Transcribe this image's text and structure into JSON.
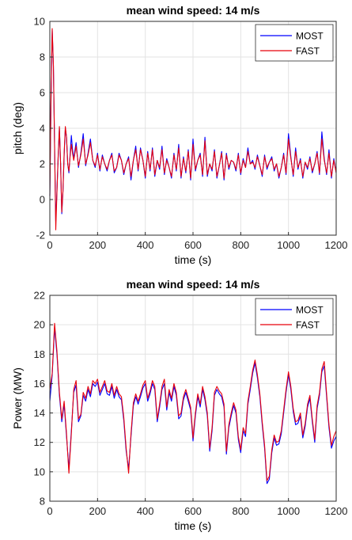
{
  "chart_data": [
    {
      "type": "line",
      "title": "mean wind speed: 14 m/s",
      "xlabel": "time (s)",
      "ylabel": "pitch (deg)",
      "xlim": [
        0,
        1200
      ],
      "ylim": [
        -2,
        10
      ],
      "xticks": [
        0,
        200,
        400,
        600,
        800,
        1000,
        1200
      ],
      "yticks": [
        -2,
        0,
        2,
        4,
        6,
        8,
        10
      ],
      "grid": true,
      "legend_position": "top-right",
      "series": [
        {
          "name": "MOST",
          "color": "#0000ff",
          "x": [
            0,
            5,
            10,
            15,
            20,
            25,
            30,
            35,
            40,
            45,
            50,
            55,
            60,
            65,
            70,
            75,
            80,
            85,
            90,
            95,
            100,
            110,
            120,
            130,
            140,
            150,
            160,
            170,
            180,
            190,
            200,
            210,
            220,
            230,
            240,
            250,
            260,
            270,
            280,
            290,
            300,
            310,
            320,
            330,
            340,
            350,
            360,
            370,
            380,
            390,
            400,
            410,
            420,
            430,
            440,
            450,
            460,
            470,
            480,
            490,
            500,
            510,
            520,
            530,
            540,
            550,
            560,
            570,
            580,
            590,
            600,
            610,
            620,
            630,
            640,
            650,
            660,
            670,
            680,
            690,
            700,
            710,
            720,
            730,
            740,
            750,
            760,
            770,
            780,
            790,
            800,
            810,
            820,
            830,
            840,
            850,
            860,
            870,
            880,
            890,
            900,
            910,
            920,
            930,
            940,
            950,
            960,
            970,
            980,
            990,
            1000,
            1010,
            1020,
            1030,
            1040,
            1050,
            1060,
            1070,
            1080,
            1090,
            1100,
            1110,
            1120,
            1130,
            1140,
            1150,
            1160,
            1170,
            1180,
            1190,
            1200
          ],
          "y": [
            0.2,
            5.5,
            9.5,
            7.5,
            3.0,
            -1.2,
            0.5,
            2.5,
            4.0,
            2.0,
            -0.8,
            0.5,
            2.5,
            4.0,
            3.5,
            2.0,
            1.5,
            2.5,
            3.6,
            2.8,
            2.3,
            3.2,
            1.8,
            2.6,
            3.7,
            1.9,
            2.6,
            3.4,
            2.2,
            1.8,
            2.6,
            1.6,
            2.5,
            2.0,
            1.6,
            2.2,
            2.6,
            1.5,
            1.8,
            2.6,
            2.2,
            1.4,
            2.0,
            2.4,
            1.1,
            2.2,
            3.0,
            1.6,
            2.9,
            2.2,
            1.2,
            2.7,
            1.6,
            2.9,
            1.3,
            2.2,
            1.7,
            3.0,
            1.4,
            2.3,
            1.8,
            1.2,
            2.6,
            1.6,
            3.1,
            1.2,
            2.4,
            1.5,
            2.8,
            1.1,
            3.4,
            1.6,
            2.2,
            2.6,
            1.3,
            3.5,
            1.3,
            2.0,
            1.6,
            2.8,
            1.2,
            1.9,
            2.7,
            1.1,
            2.6,
            1.7,
            2.2,
            2.1,
            1.6,
            2.6,
            1.4,
            2.3,
            1.8,
            2.9,
            2.0,
            2.2,
            1.7,
            2.5,
            1.9,
            1.3,
            2.5,
            1.7,
            2.1,
            2.4,
            1.6,
            2.0,
            1.2,
            1.8,
            2.6,
            1.4,
            3.7,
            2.4,
            1.3,
            2.9,
            1.7,
            2.3,
            1.2,
            2.1,
            1.7,
            2.4,
            1.5,
            2.0,
            2.7,
            1.4,
            3.8,
            2.3,
            1.4,
            2.8,
            1.2,
            2.3,
            1.5
          ],
          "note": ""
        },
        {
          "name": "FAST",
          "color": "#e8000b",
          "x": [
            0,
            5,
            10,
            15,
            20,
            25,
            30,
            35,
            40,
            45,
            50,
            55,
            60,
            65,
            70,
            75,
            80,
            85,
            90,
            95,
            100,
            110,
            120,
            130,
            140,
            150,
            160,
            170,
            180,
            190,
            200,
            210,
            220,
            230,
            240,
            250,
            260,
            270,
            280,
            290,
            300,
            310,
            320,
            330,
            340,
            350,
            360,
            370,
            380,
            390,
            400,
            410,
            420,
            430,
            440,
            450,
            460,
            470,
            480,
            490,
            500,
            510,
            520,
            530,
            540,
            550,
            560,
            570,
            580,
            590,
            600,
            610,
            620,
            630,
            640,
            650,
            660,
            670,
            680,
            690,
            700,
            710,
            720,
            730,
            740,
            750,
            760,
            770,
            780,
            790,
            800,
            810,
            820,
            830,
            840,
            850,
            860,
            870,
            880,
            890,
            900,
            910,
            920,
            930,
            940,
            950,
            960,
            970,
            980,
            990,
            1000,
            1010,
            1020,
            1030,
            1040,
            1050,
            1060,
            1070,
            1080,
            1090,
            1100,
            1110,
            1120,
            1130,
            1140,
            1150,
            1160,
            1170,
            1180,
            1190,
            1200
          ],
          "y": [
            0.2,
            5.8,
            9.6,
            7.6,
            3.0,
            -1.7,
            0.4,
            2.5,
            4.1,
            2.0,
            -0.7,
            0.5,
            2.6,
            4.1,
            3.5,
            2.0,
            1.6,
            2.4,
            3.1,
            2.6,
            2.2,
            3.0,
            1.9,
            2.5,
            3.4,
            2.0,
            2.5,
            3.2,
            2.2,
            1.9,
            2.5,
            1.7,
            2.4,
            2.0,
            1.7,
            2.2,
            2.5,
            1.6,
            1.8,
            2.5,
            2.2,
            1.5,
            2.0,
            2.3,
            1.3,
            2.2,
            2.8,
            1.7,
            2.8,
            2.2,
            1.3,
            2.6,
            1.7,
            2.8,
            1.4,
            2.2,
            1.8,
            2.8,
            1.5,
            2.2,
            1.8,
            1.3,
            2.5,
            1.7,
            2.9,
            1.3,
            2.3,
            1.6,
            2.7,
            1.2,
            3.1,
            1.7,
            2.2,
            2.5,
            1.4,
            3.3,
            1.4,
            2.0,
            1.7,
            2.7,
            1.3,
            1.9,
            2.6,
            1.2,
            2.5,
            1.8,
            2.2,
            2.1,
            1.7,
            2.5,
            1.5,
            2.2,
            1.8,
            2.7,
            2.0,
            2.1,
            1.8,
            2.4,
            1.9,
            1.4,
            2.4,
            1.8,
            2.1,
            2.3,
            1.7,
            2.0,
            1.3,
            1.8,
            2.5,
            1.5,
            3.4,
            2.3,
            1.4,
            2.7,
            1.8,
            2.2,
            1.3,
            2.1,
            1.8,
            2.3,
            1.6,
            2.0,
            2.6,
            1.5,
            3.4,
            2.2,
            1.5,
            2.6,
            1.3,
            2.2,
            1.5
          ],
          "note": ""
        }
      ]
    },
    {
      "type": "line",
      "title": "mean wind speed: 14 m/s",
      "xlabel": "time (s)",
      "ylabel": "Power (MW)",
      "xlim": [
        0,
        1200
      ],
      "ylim": [
        8,
        22
      ],
      "xticks": [
        0,
        200,
        400,
        600,
        800,
        1000,
        1200
      ],
      "yticks": [
        8,
        10,
        12,
        14,
        16,
        18,
        20,
        22
      ],
      "grid": true,
      "legend_position": "top-right",
      "series": [
        {
          "name": "MOST",
          "color": "#0000ff",
          "x": [
            0,
            10,
            20,
            30,
            40,
            50,
            60,
            70,
            80,
            90,
            100,
            110,
            120,
            130,
            140,
            150,
            160,
            170,
            180,
            190,
            200,
            210,
            220,
            230,
            240,
            250,
            260,
            270,
            280,
            290,
            300,
            310,
            320,
            330,
            340,
            350,
            360,
            370,
            380,
            390,
            400,
            410,
            420,
            430,
            440,
            450,
            460,
            470,
            480,
            490,
            500,
            510,
            520,
            530,
            540,
            550,
            560,
            570,
            580,
            590,
            600,
            610,
            620,
            630,
            640,
            650,
            660,
            670,
            680,
            690,
            700,
            710,
            720,
            730,
            740,
            750,
            760,
            770,
            780,
            790,
            800,
            810,
            820,
            830,
            840,
            850,
            860,
            870,
            880,
            890,
            900,
            910,
            920,
            930,
            940,
            950,
            960,
            970,
            980,
            990,
            1000,
            1010,
            1020,
            1030,
            1040,
            1050,
            1060,
            1070,
            1080,
            1090,
            1100,
            1110,
            1120,
            1130,
            1140,
            1150,
            1160,
            1170,
            1180,
            1190,
            1200
          ],
          "y": [
            14.8,
            16.6,
            19.8,
            18.0,
            15.2,
            13.4,
            14.6,
            12.4,
            10.2,
            12.8,
            15.4,
            15.9,
            13.4,
            13.8,
            15.2,
            14.8,
            15.6,
            15.1,
            16.0,
            15.8,
            16.1,
            15.2,
            15.6,
            16.0,
            15.3,
            15.2,
            15.8,
            15.0,
            15.6,
            15.1,
            14.9,
            13.5,
            11.4,
            10.2,
            12.4,
            14.5,
            15.1,
            14.6,
            15.1,
            15.7,
            16.0,
            14.8,
            15.3,
            16.0,
            15.6,
            13.4,
            14.4,
            15.6,
            16.0,
            14.2,
            15.4,
            14.8,
            15.8,
            15.2,
            13.6,
            13.8,
            14.9,
            15.4,
            14.8,
            14.2,
            12.1,
            13.8,
            15.1,
            14.4,
            15.6,
            14.9,
            13.8,
            11.4,
            12.8,
            15.2,
            15.6,
            15.3,
            15.1,
            14.4,
            11.2,
            13.0,
            13.8,
            14.5,
            14.0,
            12.2,
            11.3,
            12.8,
            12.4,
            14.6,
            15.6,
            16.7,
            17.4,
            16.4,
            15.1,
            13.2,
            11.6,
            9.2,
            9.5,
            11.3,
            12.3,
            11.8,
            11.9,
            12.6,
            14.0,
            15.4,
            16.6,
            15.6,
            14.1,
            13.2,
            13.3,
            13.8,
            12.3,
            13.1,
            14.4,
            15.0,
            13.4,
            12.0,
            14.3,
            15.2,
            16.8,
            17.2,
            15.1,
            13.0,
            11.6,
            12.1,
            12.4
          ],
          "note": ""
        },
        {
          "name": "FAST",
          "color": "#e8000b",
          "x": [
            0,
            10,
            20,
            30,
            40,
            50,
            60,
            70,
            80,
            90,
            100,
            110,
            120,
            130,
            140,
            150,
            160,
            170,
            180,
            190,
            200,
            210,
            220,
            230,
            240,
            250,
            260,
            270,
            280,
            290,
            300,
            310,
            320,
            330,
            340,
            350,
            360,
            370,
            380,
            390,
            400,
            410,
            420,
            430,
            440,
            450,
            460,
            470,
            480,
            490,
            500,
            510,
            520,
            530,
            540,
            550,
            560,
            570,
            580,
            590,
            600,
            610,
            620,
            630,
            640,
            650,
            660,
            670,
            680,
            690,
            700,
            710,
            720,
            730,
            740,
            750,
            760,
            770,
            780,
            790,
            800,
            810,
            820,
            830,
            840,
            850,
            860,
            870,
            880,
            890,
            900,
            910,
            920,
            930,
            940,
            950,
            960,
            970,
            980,
            990,
            1000,
            1010,
            1020,
            1030,
            1040,
            1050,
            1060,
            1070,
            1080,
            1090,
            1100,
            1110,
            1120,
            1130,
            1140,
            1150,
            1160,
            1170,
            1180,
            1190,
            1200
          ],
          "y": [
            15.6,
            16.7,
            20.1,
            18.2,
            15.4,
            13.6,
            14.8,
            12.6,
            9.9,
            12.6,
            15.6,
            16.2,
            13.6,
            13.9,
            15.4,
            15.0,
            15.8,
            15.3,
            16.2,
            16.0,
            16.3,
            15.4,
            15.8,
            16.2,
            15.5,
            15.4,
            16.0,
            15.2,
            15.8,
            15.3,
            15.1,
            13.7,
            11.6,
            9.9,
            12.6,
            14.7,
            15.3,
            14.8,
            15.3,
            15.9,
            16.2,
            15.0,
            15.5,
            16.2,
            15.8,
            13.6,
            14.6,
            15.8,
            16.3,
            14.4,
            15.6,
            15.0,
            16.0,
            15.4,
            13.8,
            14.0,
            15.1,
            15.6,
            15.0,
            14.4,
            12.3,
            14.0,
            15.3,
            14.6,
            15.8,
            15.1,
            14.0,
            11.6,
            13.0,
            15.4,
            15.8,
            15.5,
            15.3,
            14.6,
            11.4,
            13.2,
            14.0,
            14.7,
            14.2,
            12.4,
            11.5,
            13.0,
            12.6,
            14.8,
            15.8,
            16.9,
            17.6,
            16.6,
            15.3,
            13.4,
            11.8,
            9.4,
            9.7,
            11.5,
            12.5,
            12.0,
            12.1,
            12.8,
            14.2,
            15.6,
            16.8,
            15.8,
            14.3,
            13.4,
            13.5,
            14.0,
            12.5,
            13.3,
            14.6,
            15.2,
            13.6,
            12.2,
            14.5,
            15.4,
            17.0,
            17.5,
            15.3,
            13.2,
            11.8,
            12.4,
            12.8
          ],
          "note": ""
        }
      ]
    }
  ]
}
